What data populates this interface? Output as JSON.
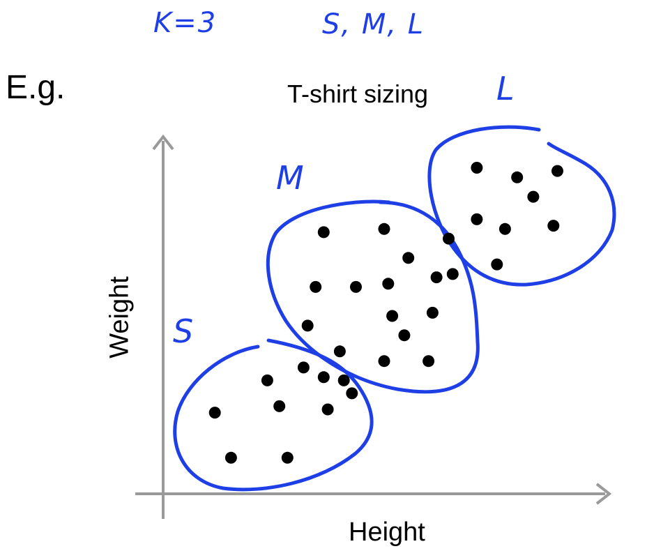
{
  "annotations": {
    "k_note": "K=3",
    "sizes_note": "S, M, L"
  },
  "slide": {
    "prefix": "E.g."
  },
  "colors": {
    "axis": "#9a9a9a",
    "points": "#000000",
    "ink": "#1f3fe6"
  },
  "chart_data": {
    "type": "scatter",
    "title": "T-shirt sizing",
    "xlabel": "Height",
    "ylabel": "Weight",
    "xlim": [
      0,
      100
    ],
    "ylim": [
      0,
      100
    ],
    "grid": false,
    "ticks": "none",
    "clusters": [
      {
        "name": "S",
        "points": [
          [
            8,
            20
          ],
          [
            21,
            30
          ],
          [
            24,
            22
          ],
          [
            30,
            34
          ],
          [
            35,
            31
          ],
          [
            36,
            21
          ],
          [
            40,
            30
          ],
          [
            42,
            26
          ],
          [
            12,
            6
          ],
          [
            26,
            6
          ]
        ]
      },
      {
        "name": "M",
        "points": [
          [
            35,
            76
          ],
          [
            50,
            77
          ],
          [
            56,
            68
          ],
          [
            33,
            59
          ],
          [
            43,
            59
          ],
          [
            51,
            60
          ],
          [
            63,
            62
          ],
          [
            31,
            47
          ],
          [
            52,
            50
          ],
          [
            62,
            51
          ],
          [
            55,
            44
          ],
          [
            39,
            39
          ],
          [
            50,
            36
          ],
          [
            61,
            36
          ]
        ]
      },
      {
        "name": "L",
        "points": [
          [
            73,
            96
          ],
          [
            83,
            93
          ],
          [
            93,
            95
          ],
          [
            87,
            87
          ],
          [
            73,
            80
          ],
          [
            80,
            77
          ],
          [
            92,
            78
          ],
          [
            66,
            74
          ],
          [
            67,
            63
          ],
          [
            78,
            66
          ]
        ]
      }
    ]
  }
}
